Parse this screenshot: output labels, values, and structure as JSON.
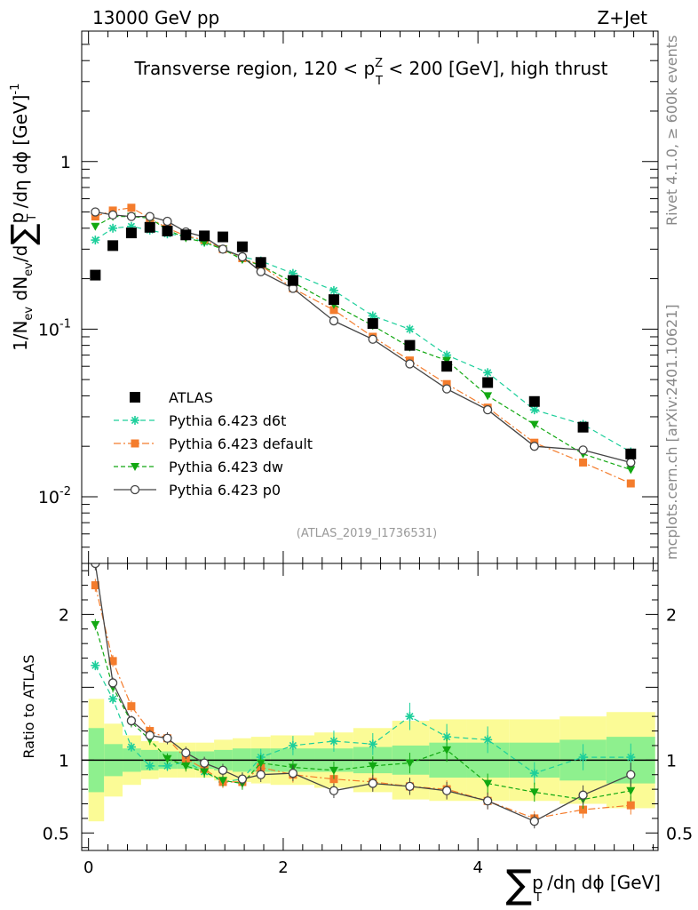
{
  "header": {
    "left": "13000 GeV pp",
    "right": "Z+Jet"
  },
  "side": {
    "rivet": "Rivet 4.1.0, ≥ 600k events",
    "mcplots": "mcplots.cern.ch [arXiv:2401.10621]"
  },
  "main_title": {
    "pre": "Transverse region, 120 < p",
    "sup": "Z",
    "sub": "T",
    "post": " < 200 [GeV], high thrust"
  },
  "ylabel_main": {
    "a": "1/N",
    "a_sub": "ev",
    "b": " dN",
    "b_sub": "ev",
    "c": "/d",
    "sum": "∑",
    "d": "p",
    "d_sub": "T",
    "e": " /dη dϕ  [GeV]",
    "e_sup": "-1"
  },
  "ylabel_ratio": "Ratio to ATLAS",
  "xlabel": {
    "sum": "∑",
    "p": "p",
    "p_sub": "T",
    "rest": " /dη dϕ [GeV]"
  },
  "analysis_id": "(ATLAS_2019_I1736531)",
  "colors": {
    "d6t": "#1dcf9b",
    "default": "#f47c2c",
    "dw": "#12a812",
    "p0": "#444444",
    "band_inner": "#8ef08e",
    "band_outer": "#fbfb96"
  },
  "chart_data": {
    "type": "line",
    "x": [
      0.07,
      0.25,
      0.44,
      0.63,
      0.81,
      1.0,
      1.19,
      1.38,
      1.58,
      1.77,
      2.1,
      2.52,
      2.92,
      3.3,
      3.68,
      4.1,
      4.58,
      5.08,
      5.57
    ],
    "xlim": [
      -0.07,
      5.85
    ],
    "x_ticks": [
      0,
      2,
      4
    ],
    "main_ylim": [
      0.004,
      6.0
    ],
    "main_yscale": "log",
    "main_y_ticks": [
      {
        "v": 0.01,
        "base": "10",
        "exp": "-2"
      },
      {
        "v": 0.1,
        "base": "10",
        "exp": "-1"
      },
      {
        "v": 1.0,
        "base": "1",
        "exp": ""
      }
    ],
    "ratio_ylim": [
      0.38,
      2.35
    ],
    "ratio_y_ticks": [
      0.5,
      1,
      2
    ],
    "data": {
      "name": "ATLAS",
      "values": [
        0.21,
        0.315,
        0.375,
        0.405,
        0.385,
        0.365,
        0.36,
        0.355,
        0.31,
        0.25,
        0.195,
        0.15,
        0.108,
        0.08,
        0.06,
        0.048,
        0.037,
        0.026,
        0.018
      ]
    },
    "series": [
      {
        "name": "Pythia 6.423 d6t",
        "key": "d6t",
        "marker": "star",
        "dash": "6,4",
        "values": [
          0.34,
          0.4,
          0.41,
          0.39,
          0.37,
          0.36,
          0.33,
          0.3,
          0.27,
          0.255,
          0.215,
          0.17,
          0.12,
          0.1,
          0.07,
          0.055,
          0.033,
          0.027,
          0.0185
        ],
        "ratio": [
          1.65,
          1.42,
          1.09,
          0.96,
          0.96,
          0.99,
          0.92,
          0.85,
          0.87,
          1.02,
          1.1,
          1.13,
          1.11,
          1.3,
          1.16,
          1.14,
          0.91,
          1.02,
          1.02
        ]
      },
      {
        "name": "Pythia 6.423 default",
        "key": "default",
        "marker": "square",
        "dash": "8,3,2,3",
        "values": [
          0.47,
          0.51,
          0.53,
          0.46,
          0.4,
          0.36,
          0.34,
          0.3,
          0.265,
          0.24,
          0.175,
          0.13,
          0.09,
          0.065,
          0.047,
          0.034,
          0.021,
          0.016,
          0.012
        ],
        "ratio": [
          2.2,
          1.68,
          1.37,
          1.2,
          1.15,
          1.01,
          0.94,
          0.85,
          0.85,
          0.95,
          0.9,
          0.87,
          0.85,
          0.82,
          0.8,
          0.72,
          0.6,
          0.66,
          0.69
        ]
      },
      {
        "name": "Pythia 6.423 dw",
        "key": "dw",
        "marker": "triangle",
        "dash": "5,3",
        "values": [
          0.41,
          0.47,
          0.47,
          0.46,
          0.39,
          0.35,
          0.33,
          0.3,
          0.26,
          0.24,
          0.19,
          0.14,
          0.105,
          0.078,
          0.065,
          0.04,
          0.027,
          0.018,
          0.0145
        ],
        "ratio": [
          1.93,
          1.5,
          1.26,
          1.14,
          1.01,
          0.96,
          0.92,
          0.86,
          0.84,
          0.98,
          0.95,
          0.93,
          0.96,
          0.98,
          1.07,
          0.84,
          0.78,
          0.73,
          0.79
        ]
      },
      {
        "name": "Pythia 6.423 p0",
        "key": "p0",
        "marker": "circle",
        "dash": "",
        "values": [
          0.5,
          0.48,
          0.47,
          0.47,
          0.44,
          0.38,
          0.355,
          0.3,
          0.27,
          0.22,
          0.175,
          0.112,
          0.087,
          0.062,
          0.044,
          0.033,
          0.02,
          0.019,
          0.016
        ],
        "ratio": [
          2.35,
          1.53,
          1.27,
          1.17,
          1.15,
          1.05,
          0.98,
          0.93,
          0.87,
          0.9,
          0.91,
          0.79,
          0.84,
          0.82,
          0.79,
          0.72,
          0.58,
          0.76,
          0.9
        ]
      }
    ],
    "ratio_band": {
      "bins": [
        0.0,
        0.16,
        0.35,
        0.54,
        0.72,
        0.91,
        1.1,
        1.29,
        1.48,
        1.67,
        1.87,
        2.32,
        2.72,
        3.12,
        3.5,
        3.88,
        4.32,
        4.84,
        5.32,
        5.82
      ],
      "inner": [
        0.22,
        0.11,
        0.08,
        0.07,
        0.06,
        0.06,
        0.06,
        0.07,
        0.08,
        0.08,
        0.08,
        0.08,
        0.09,
        0.1,
        0.12,
        0.12,
        0.12,
        0.14,
        0.16
      ],
      "outer": [
        0.42,
        0.25,
        0.17,
        0.13,
        0.12,
        0.12,
        0.12,
        0.14,
        0.15,
        0.16,
        0.17,
        0.19,
        0.22,
        0.27,
        0.28,
        0.28,
        0.28,
        0.3,
        0.33
      ]
    }
  }
}
